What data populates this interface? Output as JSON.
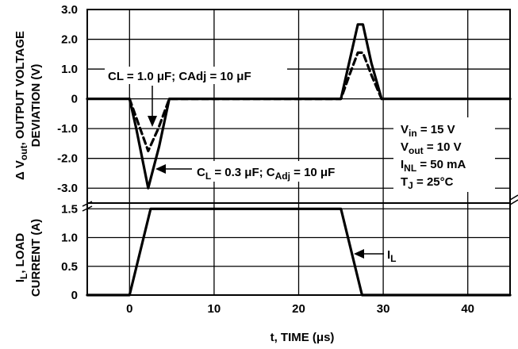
{
  "chart_data": [
    {
      "type": "line",
      "name": "top-panel",
      "ylabel": [
        "Δ V",
        "out",
        ", OUTPUT VOLTAGE",
        "DEVIATION (V)"
      ],
      "xlim": [
        -5,
        45
      ],
      "ylim": [
        -3.5,
        3
      ],
      "x_ticks": [
        0,
        10,
        20,
        30,
        40
      ],
      "y_ticks": [
        3.0,
        2.0,
        1.0,
        0,
        -1.0,
        -2.0,
        -3.0
      ],
      "y_tick_labels": [
        "3.0",
        "2.0",
        "1.0",
        "0",
        "-1.0",
        "-2.0",
        "-3.0"
      ],
      "grid": true,
      "series": [
        {
          "style": "solid",
          "x": [
            -5,
            0,
            0.8,
            2.2,
            3.5,
            4.7,
            25,
            25.8,
            27,
            27.6,
            28.6,
            29.8,
            45
          ],
          "y": [
            0,
            0,
            -1.0,
            -3.0,
            -1.6,
            0,
            0,
            1.0,
            2.5,
            2.5,
            1.2,
            0,
            0
          ]
        },
        {
          "style": "dashed",
          "x": [
            0,
            1.0,
            2.2,
            3.4,
            4.7,
            25,
            26,
            27,
            27.6,
            28.6,
            29.8
          ],
          "y": [
            0,
            -0.8,
            -1.75,
            -1.0,
            0,
            0,
            0.8,
            1.55,
            1.55,
            0.8,
            0
          ]
        }
      ],
      "annotations": [
        {
          "text": "CL = 1.0 μF; CAdj = 10 μF",
          "target": "dashed"
        },
        {
          "parts": [
            "C",
            "L",
            " = 0.3 μF; C",
            "Adj",
            " = 10 μF"
          ],
          "target": "solid"
        }
      ],
      "conditions": [
        [
          "V",
          "in",
          " = 15 V"
        ],
        [
          "V",
          "out",
          " = 10 V"
        ],
        [
          "I",
          "NL",
          " = 50 mA"
        ],
        [
          "T",
          "J",
          " = 25°C"
        ]
      ]
    },
    {
      "type": "line",
      "name": "bottom-panel",
      "ylabel": [
        "I",
        "L",
        ", LOAD",
        "CURRENT (A)"
      ],
      "xlabel": "t, TIME (μs)",
      "xlim": [
        -5,
        45
      ],
      "ylim": [
        0,
        1.6
      ],
      "x_ticks": [
        0,
        10,
        20,
        30,
        40
      ],
      "x_tick_labels": [
        "0",
        "10",
        "20",
        "30",
        "40"
      ],
      "y_ticks": [
        1.5,
        1.0,
        0.5,
        0
      ],
      "y_tick_labels": [
        "1.5",
        "1.0",
        "0.5",
        "0"
      ],
      "grid": true,
      "series": [
        {
          "style": "solid",
          "x": [
            -5,
            0,
            2.5,
            25,
            27.5,
            45
          ],
          "y": [
            0,
            0,
            1.5,
            1.5,
            0,
            0
          ]
        }
      ],
      "annotations": [
        {
          "parts": [
            "I",
            "L"
          ],
          "target": "solid"
        }
      ]
    }
  ]
}
